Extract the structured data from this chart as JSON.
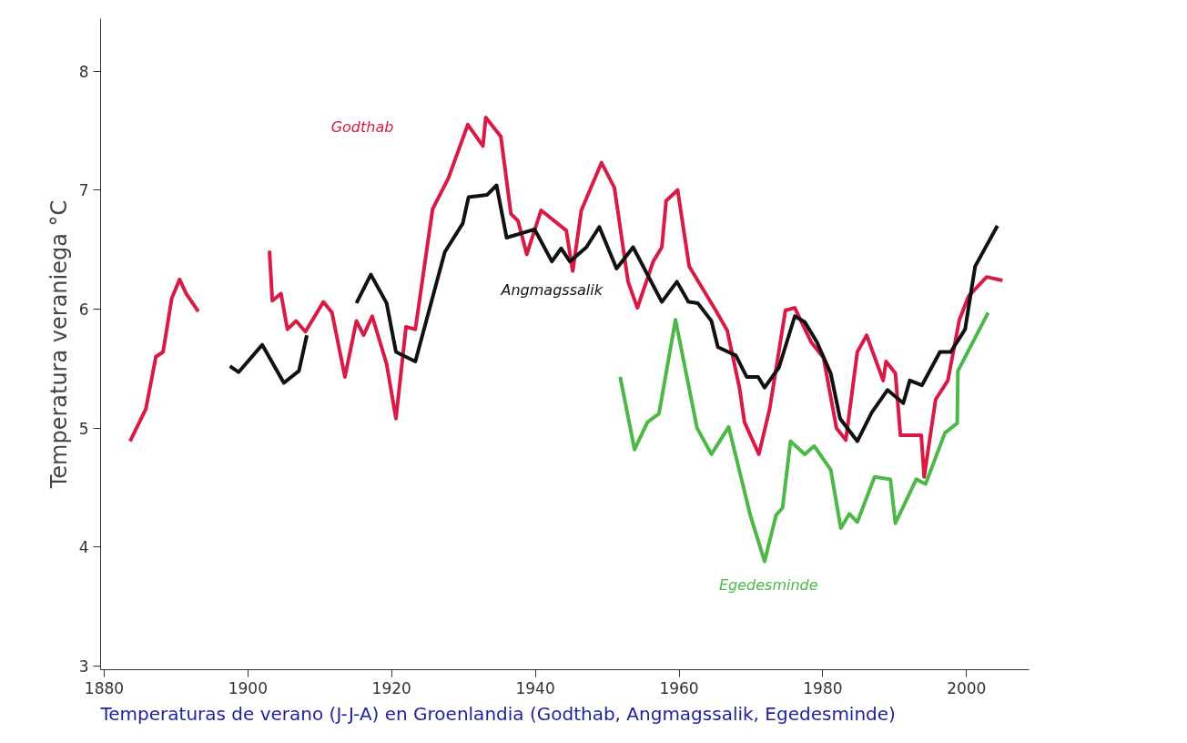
{
  "chart_data": {
    "type": "line",
    "title": "Temperaturas de verano (J-J-A) en Groenlandia (Godthab, Angmagssalik, Egedesminde)",
    "ylabel": "Temperatura veraniega °C",
    "xlim": [
      1879.5,
      2008.7
    ],
    "ylim": [
      2.97,
      8.44
    ],
    "xticks": [
      1880,
      1900,
      1920,
      1940,
      1960,
      1980,
      2000
    ],
    "yticks": [
      3,
      4,
      5,
      6,
      7,
      8
    ],
    "grid": false,
    "legend": false,
    "line_style": "solid",
    "marker": "none",
    "series": [
      {
        "name": "Godthab",
        "color": "#d81b45",
        "x": [
          1883.6,
          1885.8,
          1887.2,
          1888.2,
          1889.4,
          1890.5,
          1891.4,
          1893.1,
          1898,
          1903.0,
          1903.4,
          1904.6,
          1905.5,
          1906.7,
          1908.0,
          1910.5,
          1911.7,
          1913.5,
          1915.1,
          1916.1,
          1917.3,
          1919.3,
          1920.6,
          1922.0,
          1923.3,
          1925.7,
          1927.9,
          1930.6,
          1932.7,
          1933.1,
          1935.2,
          1936.6,
          1937.6,
          1938.8,
          1940.8,
          1944.3,
          1945.2,
          1946.4,
          1949.2,
          1951.0,
          1952.9,
          1954.2,
          1956.4,
          1957.6,
          1958.2,
          1959.8,
          1961.4,
          1965.0,
          1966.7,
          1968.4,
          1969.1,
          1971.1,
          1972.6,
          1974.8,
          1976.1,
          1978.4,
          1980.1,
          1981.9,
          1983.2,
          1984.8,
          1986.1,
          1988.4,
          1988.8,
          1990.1,
          1990.8,
          1993.7,
          1994.1,
          1995.7,
          1997.4,
          1999.0,
          2000.3,
          2002.8,
          2005.0
        ],
        "values": [
          4.89,
          5.16,
          5.6,
          5.64,
          6.09,
          6.25,
          6.13,
          5.98,
          null,
          6.49,
          6.07,
          6.13,
          5.83,
          5.9,
          5.81,
          6.06,
          5.97,
          5.43,
          5.9,
          5.78,
          5.94,
          5.54,
          5.08,
          5.85,
          5.83,
          6.84,
          7.1,
          7.55,
          7.37,
          7.61,
          7.45,
          6.8,
          6.74,
          6.46,
          6.83,
          6.66,
          6.32,
          6.83,
          7.23,
          7.02,
          6.23,
          6.01,
          6.4,
          6.52,
          6.91,
          7.0,
          6.36,
          6.0,
          5.82,
          5.34,
          5.05,
          4.78,
          5.16,
          5.99,
          6.01,
          5.72,
          5.59,
          5.0,
          4.9,
          5.64,
          5.78,
          5.4,
          5.56,
          5.46,
          4.94,
          4.94,
          4.59,
          5.24,
          5.4,
          5.91,
          6.11,
          6.27,
          6.24
        ]
      },
      {
        "name": "Angmagssalik",
        "color": "#111111",
        "x": [
          1897.5,
          1898.7,
          1902.0,
          1905.0,
          1907.1,
          1908.2,
          1911,
          1915.1,
          1917.1,
          1919.3,
          1920.6,
          1923.3,
          1927.4,
          1929.9,
          1930.7,
          1933.3,
          1934.6,
          1936.0,
          1939.9,
          1942.3,
          1943.6,
          1944.8,
          1947.1,
          1948.9,
          1951.3,
          1953.6,
          1957.6,
          1959.7,
          1961.3,
          1962.6,
          1964.5,
          1965.4,
          1967.9,
          1969.4,
          1971.0,
          1971.9,
          1973.9,
          1976.1,
          1977.5,
          1979.2,
          1981.1,
          1982.4,
          1984.8,
          1986.8,
          1989.0,
          1991.2,
          1992.1,
          1993.8,
          1996.3,
          1997.8,
          1999.8,
          2001.2,
          2004.3
        ],
        "values": [
          5.52,
          5.47,
          5.7,
          5.38,
          5.48,
          5.78,
          null,
          6.05,
          6.29,
          6.05,
          5.64,
          5.56,
          6.48,
          6.72,
          6.94,
          6.96,
          7.04,
          6.6,
          6.67,
          6.4,
          6.51,
          6.4,
          6.52,
          6.69,
          6.34,
          6.52,
          6.06,
          6.23,
          6.06,
          6.05,
          5.9,
          5.68,
          5.61,
          5.43,
          5.43,
          5.34,
          5.51,
          5.94,
          5.89,
          5.72,
          5.46,
          5.08,
          4.89,
          5.13,
          5.32,
          5.21,
          5.4,
          5.36,
          5.64,
          5.64,
          5.83,
          6.36,
          6.7
        ]
      },
      {
        "name": "Egedesminde",
        "color": "#4db848",
        "x": [
          1951.8,
          1953.8,
          1955.6,
          1957.2,
          1959.5,
          1962.5,
          1964.5,
          1966.9,
          1969.9,
          1971.9,
          1973.5,
          1974.4,
          1975.5,
          1977.5,
          1978.8,
          1981.1,
          1982.5,
          1983.7,
          1984.8,
          1987.2,
          1989.4,
          1990.1,
          1993.0,
          1994.3,
          1997.0,
          1998.7,
          1998.8,
          2003.0
        ],
        "values": [
          5.43,
          4.82,
          5.05,
          5.12,
          5.91,
          5.0,
          4.78,
          5.01,
          4.27,
          3.88,
          4.27,
          4.33,
          4.89,
          4.78,
          4.85,
          4.65,
          4.16,
          4.28,
          4.21,
          4.59,
          4.57,
          4.2,
          4.57,
          4.53,
          4.96,
          5.04,
          5.48,
          5.97
        ]
      }
    ]
  }
}
